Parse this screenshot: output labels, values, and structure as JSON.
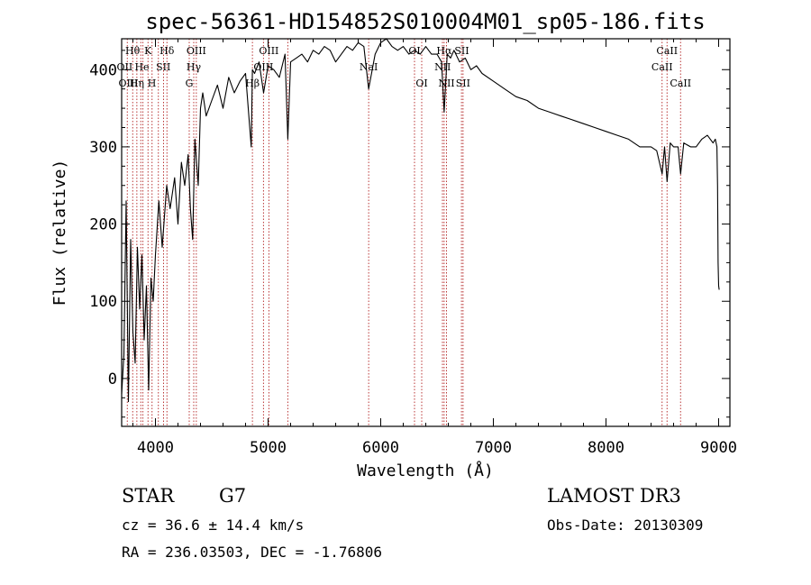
{
  "chart_data": {
    "type": "line",
    "title": "spec-56361-HD154852S010004M01_sp05-186.fits",
    "xlabel": "Wavelength (Å)",
    "ylabel": "Flux (relative)",
    "xlim": [
      3700,
      9100
    ],
    "ylim": [
      -62,
      440
    ],
    "xticks": [
      4000,
      5000,
      6000,
      7000,
      8000,
      9000
    ],
    "yticks": [
      0,
      100,
      200,
      300,
      400
    ],
    "grid": false,
    "colors": {
      "spectrum": "#000000",
      "line_marker": "#b22222",
      "axis": "#000000"
    },
    "series": [
      {
        "name": "spectrum",
        "x": [
          3700,
          3720,
          3740,
          3760,
          3780,
          3800,
          3820,
          3840,
          3860,
          3880,
          3900,
          3920,
          3940,
          3960,
          3980,
          4000,
          4030,
          4060,
          4100,
          4130,
          4170,
          4200,
          4230,
          4260,
          4290,
          4310,
          4330,
          4350,
          4380,
          4400,
          4420,
          4450,
          4500,
          4550,
          4600,
          4650,
          4700,
          4750,
          4800,
          4850,
          4861,
          4880,
          4920,
          4960,
          5000,
          5050,
          5100,
          5150,
          5175,
          5200,
          5250,
          5300,
          5350,
          5400,
          5450,
          5500,
          5550,
          5600,
          5650,
          5700,
          5750,
          5800,
          5850,
          5893,
          5950,
          6000,
          6050,
          6100,
          6150,
          6200,
          6250,
          6300,
          6350,
          6400,
          6450,
          6500,
          6540,
          6563,
          6590,
          6620,
          6650,
          6700,
          6750,
          6800,
          6850,
          6900,
          7000,
          7100,
          7200,
          7300,
          7400,
          7500,
          7600,
          7700,
          7800,
          7900,
          8000,
          8100,
          8200,
          8300,
          8400,
          8450,
          8498,
          8520,
          8542,
          8570,
          8600,
          8640,
          8662,
          8690,
          8750,
          8800,
          8850,
          8900,
          8950,
          8970,
          8985,
          8990,
          8995,
          9000,
          9005
        ],
        "y": [
          -20,
          30,
          230,
          -30,
          180,
          60,
          20,
          170,
          90,
          160,
          50,
          120,
          -15,
          130,
          100,
          160,
          230,
          170,
          250,
          220,
          260,
          200,
          280,
          250,
          290,
          220,
          180,
          310,
          250,
          350,
          370,
          340,
          360,
          380,
          350,
          390,
          370,
          385,
          395,
          300,
          400,
          395,
          410,
          370,
          405,
          400,
          390,
          420,
          310,
          410,
          415,
          420,
          410,
          425,
          420,
          430,
          425,
          410,
          420,
          430,
          425,
          435,
          430,
          375,
          420,
          435,
          440,
          430,
          425,
          430,
          420,
          425,
          420,
          430,
          420,
          420,
          410,
          345,
          420,
          415,
          425,
          410,
          415,
          400,
          405,
          395,
          385,
          375,
          365,
          360,
          350,
          345,
          340,
          335,
          330,
          325,
          320,
          315,
          310,
          300,
          300,
          295,
          265,
          300,
          255,
          305,
          300,
          300,
          265,
          305,
          300,
          300,
          310,
          315,
          305,
          310,
          300,
          250,
          150,
          120,
          115
        ]
      }
    ],
    "line_markers": [
      {
        "wavelength": 3750
      },
      {
        "wavelength": 3798
      },
      {
        "wavelength": 3835
      },
      {
        "wavelength": 3870
      },
      {
        "wavelength": 3889
      },
      {
        "wavelength": 3934
      },
      {
        "wavelength": 3970
      },
      {
        "wavelength": 4026
      },
      {
        "wavelength": 4072
      },
      {
        "wavelength": 4102
      },
      {
        "wavelength": 4300
      },
      {
        "wavelength": 4340
      },
      {
        "wavelength": 4363
      },
      {
        "wavelength": 4861
      },
      {
        "wavelength": 4959
      },
      {
        "wavelength": 5007
      },
      {
        "wavelength": 5175
      },
      {
        "wavelength": 5893
      },
      {
        "wavelength": 6300
      },
      {
        "wavelength": 6364
      },
      {
        "wavelength": 6548
      },
      {
        "wavelength": 6563
      },
      {
        "wavelength": 6584
      },
      {
        "wavelength": 6717
      },
      {
        "wavelength": 6731
      },
      {
        "wavelength": 8498
      },
      {
        "wavelength": 8542
      },
      {
        "wavelength": 8662
      }
    ],
    "line_labels": [
      {
        "text": "Hθ",
        "wavelength": 3797,
        "row": 1
      },
      {
        "text": "K",
        "wavelength": 3934,
        "row": 1
      },
      {
        "text": "Hδ",
        "wavelength": 4102,
        "row": 1
      },
      {
        "text": "OIII",
        "wavelength": 4363,
        "row": 1
      },
      {
        "text": "OIII",
        "wavelength": 5007,
        "row": 1
      },
      {
        "text": "OI",
        "wavelength": 6300,
        "row": 1
      },
      {
        "text": "Hα",
        "wavelength": 6563,
        "row": 1
      },
      {
        "text": "SII",
        "wavelength": 6720,
        "row": 1
      },
      {
        "text": "CaII",
        "wavelength": 8542,
        "row": 1
      },
      {
        "text": "OII",
        "wavelength": 3727,
        "row": 2
      },
      {
        "text": "He",
        "wavelength": 3880,
        "row": 2
      },
      {
        "text": "SII",
        "wavelength": 4070,
        "row": 2
      },
      {
        "text": "Hγ",
        "wavelength": 4340,
        "row": 2
      },
      {
        "text": "OIII",
        "wavelength": 4959,
        "row": 2
      },
      {
        "text": "NII",
        "wavelength": 6550,
        "row": 2
      },
      {
        "text": "NaI",
        "wavelength": 5893,
        "row": 2
      },
      {
        "text": "CaII",
        "wavelength": 8498,
        "row": 2
      },
      {
        "text": "OIII",
        "wavelength": 3760,
        "row": 3
      },
      {
        "text": "Hη",
        "wavelength": 3835,
        "row": 3
      },
      {
        "text": "H",
        "wavelength": 3968,
        "row": 3
      },
      {
        "text": "G",
        "wavelength": 4300,
        "row": 3
      },
      {
        "text": "Hβ",
        "wavelength": 4861,
        "row": 3
      },
      {
        "text": "OI",
        "wavelength": 6364,
        "row": 3
      },
      {
        "text": "NII",
        "wavelength": 6584,
        "row": 3
      },
      {
        "text": "SII",
        "wavelength": 6731,
        "row": 3
      },
      {
        "text": "CaII",
        "wavelength": 8662,
        "row": 3
      }
    ]
  },
  "info": {
    "class_text": "STAR",
    "subclass_text": "G7",
    "cz_text": "cz = 36.6 ± 14.4 km/s",
    "radec_text": "RA = 236.03503, DEC =  -1.76806",
    "survey_text": "LAMOST DR3",
    "obsdate_text": "Obs-Date: 20130309"
  }
}
